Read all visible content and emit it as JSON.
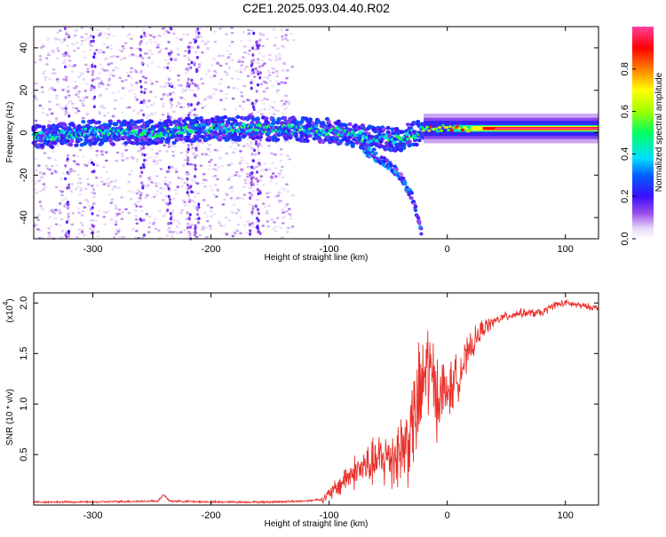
{
  "chart_data": [
    {
      "type": "heatmap",
      "title": "C2E1.2025.093.04.40.R02",
      "xlabel": "Height of straight line (km)",
      "ylabel": "Frequency (Hz)",
      "xlim": [
        -350,
        128
      ],
      "ylim": [
        -50,
        50
      ],
      "x_ticks": [
        -300,
        -200,
        -100,
        0,
        100
      ],
      "y_ticks": [
        -40,
        -20,
        0,
        20,
        40
      ],
      "colorbar": {
        "label": "Normalized spectral amplitude",
        "range": [
          0.0,
          1.0
        ],
        "ticks": [
          0.0,
          0.2,
          0.4,
          0.6,
          0.8
        ],
        "colormap": "rainbow (white-purple-blue-cyan-green-yellow-red-magenta)"
      },
      "main_band_center_hz": [
        {
          "x": -350,
          "y": -2
        },
        {
          "x": -300,
          "y": 0
        },
        {
          "x": -250,
          "y": 0
        },
        {
          "x": -200,
          "y": 2
        },
        {
          "x": -150,
          "y": 2
        },
        {
          "x": -100,
          "y": 1
        },
        {
          "x": -60,
          "y": -3
        },
        {
          "x": -40,
          "y": -3
        },
        {
          "x": -20,
          "y": 1
        },
        {
          "x": 0,
          "y": 2
        },
        {
          "x": 50,
          "y": 2
        },
        {
          "x": 128,
          "y": 2
        }
      ],
      "secondary_branch_hz": [
        {
          "x": -70,
          "y": -8
        },
        {
          "x": -50,
          "y": -15
        },
        {
          "x": -40,
          "y": -20
        },
        {
          "x": -30,
          "y": -30
        },
        {
          "x": -22,
          "y": -47
        }
      ],
      "continuous_line_start_x": -20,
      "continuous_line_amplitude": 1.0
    },
    {
      "type": "line",
      "xlabel": "Height of straight line (km)",
      "ylabel": "SNR (10 * v/v)",
      "y_multiplier": "(x10",
      "y_multiplier_exp": "4",
      "y_multiplier_close": ")",
      "xlim": [
        -350,
        128
      ],
      "ylim": [
        0,
        2.1
      ],
      "x_ticks": [
        -300,
        -200,
        -100,
        0,
        100
      ],
      "y_ticks": [
        0.5,
        1.0,
        1.5,
        2.0
      ],
      "color": "#e8302a",
      "series": [
        {
          "name": "SNR (x10^4)",
          "points": [
            {
              "x": -350,
              "y": 0.03
            },
            {
              "x": -300,
              "y": 0.03
            },
            {
              "x": -245,
              "y": 0.04
            },
            {
              "x": -240,
              "y": 0.1
            },
            {
              "x": -235,
              "y": 0.04
            },
            {
              "x": -200,
              "y": 0.03
            },
            {
              "x": -150,
              "y": 0.03
            },
            {
              "x": -120,
              "y": 0.04
            },
            {
              "x": -105,
              "y": 0.06
            },
            {
              "x": -95,
              "y": 0.15
            },
            {
              "x": -85,
              "y": 0.28
            },
            {
              "x": -75,
              "y": 0.35
            },
            {
              "x": -65,
              "y": 0.4
            },
            {
              "x": -55,
              "y": 0.45
            },
            {
              "x": -45,
              "y": 0.5
            },
            {
              "x": -35,
              "y": 0.6
            },
            {
              "x": -28,
              "y": 0.85
            },
            {
              "x": -22,
              "y": 1.1
            },
            {
              "x": -17,
              "y": 1.4
            },
            {
              "x": -12,
              "y": 1.2
            },
            {
              "x": -8,
              "y": 1.1
            },
            {
              "x": -3,
              "y": 1.1
            },
            {
              "x": 3,
              "y": 1.15
            },
            {
              "x": 10,
              "y": 1.3
            },
            {
              "x": 20,
              "y": 1.55
            },
            {
              "x": 30,
              "y": 1.75
            },
            {
              "x": 45,
              "y": 1.85
            },
            {
              "x": 60,
              "y": 1.9
            },
            {
              "x": 80,
              "y": 1.9
            },
            {
              "x": 90,
              "y": 1.98
            },
            {
              "x": 100,
              "y": 2.0
            },
            {
              "x": 115,
              "y": 1.97
            },
            {
              "x": 128,
              "y": 1.95
            }
          ],
          "noise_amplitude": [
            {
              "x": -350,
              "y": 0.01
            },
            {
              "x": -110,
              "y": 0.01
            },
            {
              "x": -95,
              "y": 0.1
            },
            {
              "x": -60,
              "y": 0.25
            },
            {
              "x": -40,
              "y": 0.4
            },
            {
              "x": -20,
              "y": 0.6
            },
            {
              "x": 0,
              "y": 0.3
            },
            {
              "x": 20,
              "y": 0.15
            },
            {
              "x": 40,
              "y": 0.05
            },
            {
              "x": 128,
              "y": 0.03
            }
          ]
        }
      ]
    }
  ]
}
